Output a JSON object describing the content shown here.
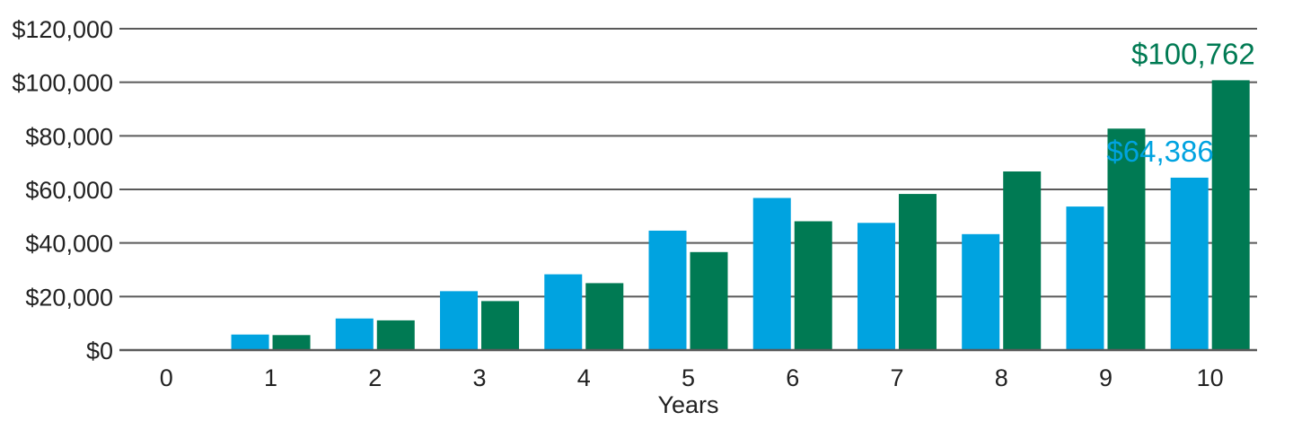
{
  "chart_data": {
    "type": "bar",
    "categories": [
      "0",
      "1",
      "2",
      "3",
      "4",
      "5",
      "6",
      "7",
      "8",
      "9",
      "10"
    ],
    "series": [
      {
        "color": "#00a3e0",
        "values": [
          0,
          5800,
          11800,
          22000,
          28300,
          44600,
          56800,
          47500,
          43300,
          53600,
          64386
        ]
      },
      {
        "color": "#007a53",
        "values": [
          0,
          5600,
          11100,
          18300,
          25000,
          36600,
          48100,
          58300,
          66700,
          82700,
          100762
        ]
      }
    ],
    "xlabel": "Years",
    "ylabel": "",
    "ylim": [
      0,
      120000
    ],
    "y_ticks": [
      "$0",
      "$20,000",
      "$40,000",
      "$60,000",
      "$80,000",
      "$100,000",
      "$120,000"
    ],
    "y_tick_values": [
      0,
      20000,
      40000,
      60000,
      80000,
      100000,
      120000
    ],
    "data_labels": [
      {
        "series": 0,
        "category": "10",
        "text": "$64,386"
      },
      {
        "series": 1,
        "category": "10",
        "text": "$100,762"
      }
    ],
    "grid": true,
    "legend": "none"
  }
}
